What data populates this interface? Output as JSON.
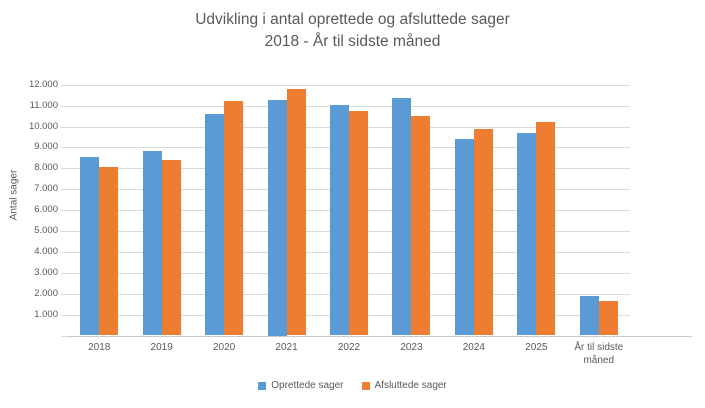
{
  "chart_data": {
    "type": "bar",
    "title": [
      "Udvikling i antal oprettede og afsluttede sager",
      "2018 - År til sidste måned"
    ],
    "categories": [
      "2018",
      "2019",
      "2020",
      "2021",
      "2022",
      "2023",
      "2024",
      "2025",
      "År til sidste måned"
    ],
    "series": [
      {
        "name": "Oprettede sager",
        "color": "#5B9BD5",
        "values": [
          8550,
          8850,
          10600,
          11250,
          11050,
          11350,
          9400,
          9700,
          1900
        ]
      },
      {
        "name": "Afsluttede sager",
        "color": "#ED7D31",
        "values": [
          8050,
          8400,
          11200,
          11800,
          10750,
          10500,
          9900,
          10200,
          1650
        ]
      }
    ],
    "xlabel": "",
    "ylabel": "Antal sager",
    "ylim": [
      0,
      12000
    ],
    "ytick_step": 1000,
    "ytick_labels": [
      "1.000",
      "2.000",
      "3.000",
      "4.000",
      "5.000",
      "6.000",
      "7.000",
      "8.000",
      "9.000",
      "10.000",
      "11.000",
      "12.000"
    ],
    "grid": true,
    "legend_position": "bottom",
    "colors": {
      "text": "#595959",
      "grid": "#D9D9D9",
      "axis": "#C9C9C9"
    }
  }
}
